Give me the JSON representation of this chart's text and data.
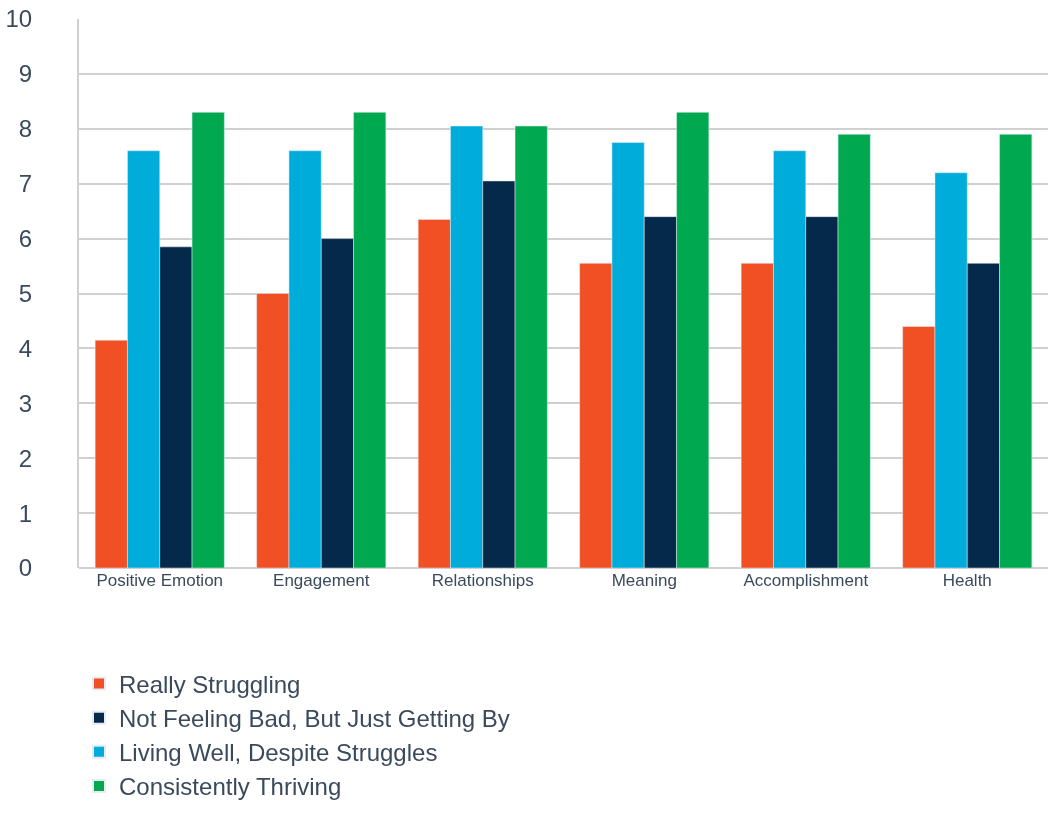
{
  "chart_data": {
    "type": "bar",
    "categories": [
      "Positive Emotion",
      "Engagement",
      "Relationships",
      "Meaning",
      "Accomplishment",
      "Health"
    ],
    "series": [
      {
        "name": "Really Struggling",
        "color": "#f05023",
        "values": [
          4.15,
          5.0,
          6.35,
          5.55,
          5.55,
          4.4
        ]
      },
      {
        "name": "Living Well, Despite Struggles",
        "color": "#00acd9",
        "values": [
          7.6,
          7.6,
          8.05,
          7.75,
          7.6,
          7.2
        ]
      },
      {
        "name": "Not Feeling Bad, But Just Getting By",
        "color": "#05294a",
        "values": [
          5.85,
          6.0,
          7.05,
          6.4,
          6.4,
          5.55
        ]
      },
      {
        "name": "Consistently Thriving",
        "color": "#00a94f",
        "values": [
          8.3,
          8.3,
          8.05,
          8.3,
          7.9,
          7.9
        ]
      }
    ],
    "ylim": [
      0,
      10
    ],
    "yticks": [
      0,
      1,
      2,
      3,
      4,
      5,
      6,
      7,
      8,
      9,
      10
    ],
    "grid": "y",
    "legend": "bottom"
  }
}
